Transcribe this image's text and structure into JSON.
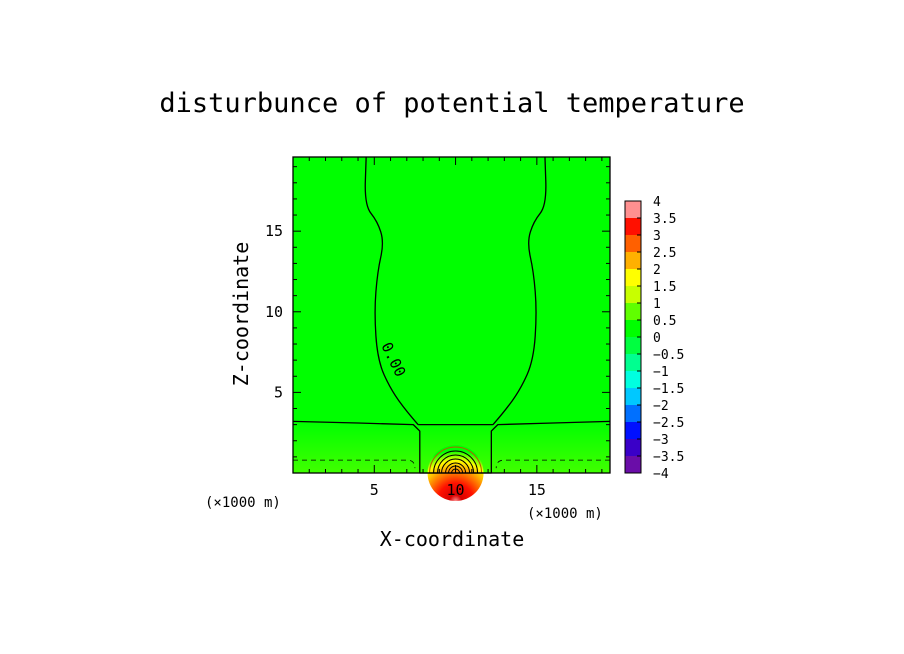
{
  "chart_data": {
    "type": "heatmap",
    "title": "disturbunce of potential temperature",
    "xlabel": "X-coordinate",
    "ylabel": "Z-coordinate",
    "x_unit": "(×1000 m)",
    "z_unit": "(×1000 m)",
    "xlim": [
      0,
      19.5
    ],
    "zlim": [
      0,
      19.6
    ],
    "x_ticks": [
      5,
      10,
      15
    ],
    "z_ticks": [
      5,
      10,
      15
    ],
    "contour_label": "0.00",
    "colorbar": {
      "min": -4,
      "max": 4,
      "levels": [
        "4",
        "3.5",
        "3",
        "2.5",
        "2",
        "1.5",
        "1",
        "0.5",
        "0",
        "−0.5",
        "−1",
        "−1.5",
        "−2",
        "−2.5",
        "−3",
        "−3.5",
        "−4"
      ],
      "colors": [
        "#6a0da8",
        "#3a00c8",
        "#0010ff",
        "#0070ff",
        "#00c8ff",
        "#00ffe0",
        "#00ff90",
        "#00ff40",
        "#00ff00",
        "#60ff00",
        "#c8ff00",
        "#ffff00",
        "#ffb000",
        "#ff6000",
        "#ff1000",
        "#d80000",
        "#ff9090"
      ]
    },
    "background_color": "#00ff00",
    "anomaly": {
      "x_center": 10,
      "z_center": 0,
      "max_value": 4
    },
    "zero_contour": [
      [
        0,
        3.2
      ],
      [
        4,
        3.1
      ],
      [
        7.4,
        3
      ],
      [
        7.8,
        2.6
      ],
      [
        7.8,
        0
      ],
      [
        12.2,
        0
      ],
      [
        12.2,
        2.6
      ],
      [
        12.6,
        3
      ],
      [
        16,
        3.1
      ],
      [
        19.5,
        3.2
      ]
    ],
    "zero_contour_plume_left": [
      [
        7.7,
        3.0
      ],
      [
        7.0,
        3.8
      ],
      [
        6.0,
        5.2
      ],
      [
        5.2,
        7.0
      ],
      [
        5.0,
        10.0
      ],
      [
        5.2,
        12.5
      ],
      [
        5.6,
        14.3
      ],
      [
        5.2,
        15.6
      ],
      [
        4.4,
        16.6
      ],
      [
        4.5,
        19.6
      ]
    ],
    "zero_contour_plume_right": [
      [
        12.3,
        3.0
      ],
      [
        13.0,
        3.8
      ],
      [
        14.0,
        5.2
      ],
      [
        14.8,
        7.0
      ],
      [
        15.0,
        10.0
      ],
      [
        14.8,
        12.5
      ],
      [
        14.4,
        14.3
      ],
      [
        14.8,
        15.6
      ],
      [
        15.6,
        16.6
      ],
      [
        15.5,
        19.6
      ]
    ],
    "dashed_contour_z": 0.8
  }
}
